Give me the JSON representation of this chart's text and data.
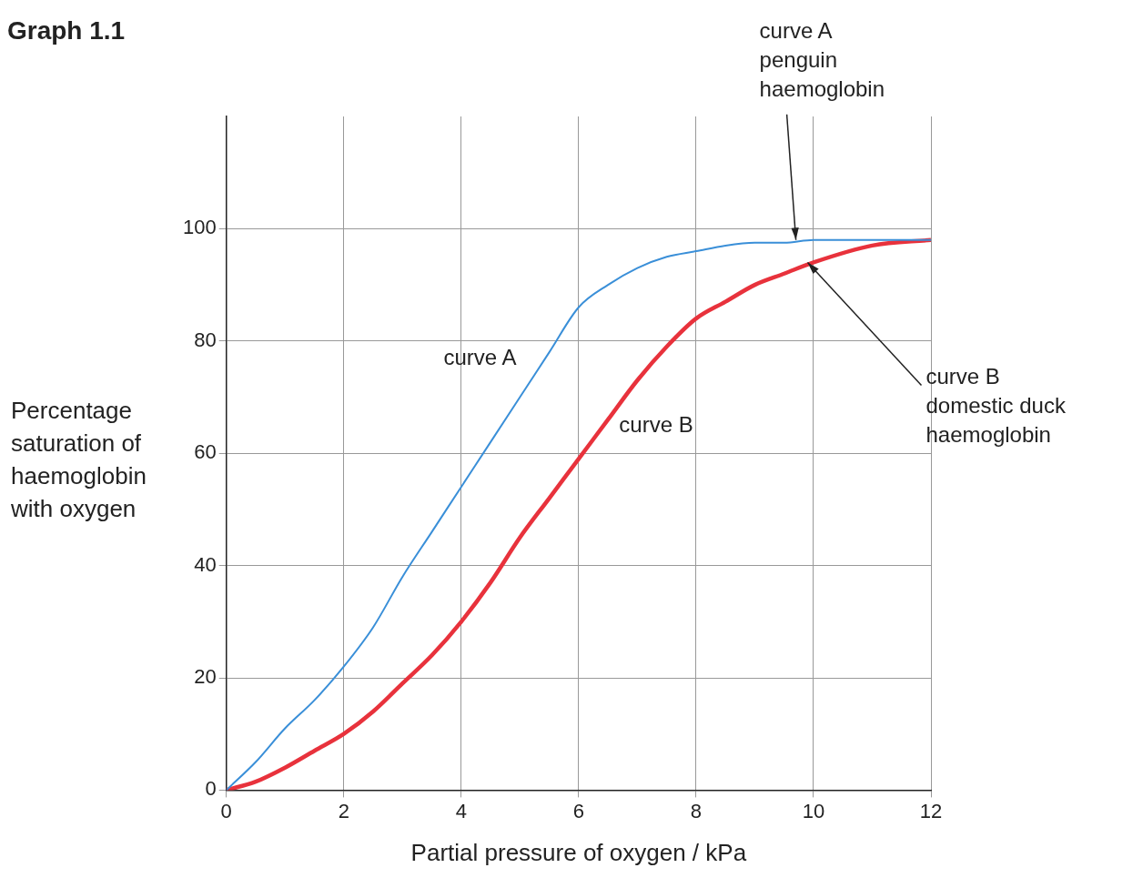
{
  "chart_data": {
    "type": "line",
    "title": "Graph 1.1",
    "xlabel": "Partial pressure of oxygen / kPa",
    "ylabel": "Percentage saturation of haemoglobin with oxygen",
    "x": [
      0,
      0.5,
      1,
      1.5,
      2,
      2.5,
      3,
      3.5,
      4,
      4.5,
      5,
      5.5,
      6,
      6.5,
      7,
      7.5,
      8,
      8.5,
      9,
      9.5,
      10,
      11,
      12
    ],
    "series": [
      {
        "color": "#3a8fd8",
        "values": [
          0,
          5,
          11,
          16,
          22,
          29,
          38,
          46,
          54,
          62,
          70,
          78,
          86,
          90,
          93,
          95,
          96,
          97,
          97.5,
          97.5,
          98,
          98,
          98
        ]
      },
      {
        "color": "#e8323c",
        "values": [
          0,
          1.5,
          4,
          7,
          10,
          14,
          19,
          24,
          30,
          37,
          45,
          52,
          59,
          66,
          73,
          79,
          84,
          87,
          90,
          92,
          94,
          97,
          98
        ]
      }
    ],
    "xlim": [
      0,
      12
    ],
    "xticks": [
      0,
      2,
      4,
      6,
      8,
      10,
      12
    ],
    "ylim": [
      0,
      120
    ],
    "yticks": [
      0,
      20,
      40,
      60,
      80,
      100
    ],
    "grid": true,
    "legend": false,
    "marker": "none",
    "line_style": "solid",
    "annotations": [
      "curve A",
      "curve B",
      {
        "text": "curve A\npenguin haemoglobin",
        "x": 9.7,
        "y": 98
      },
      {
        "text": "curve B\ndomestic duck haemoglobin",
        "x": 9.9,
        "y": 94
      }
    ]
  }
}
